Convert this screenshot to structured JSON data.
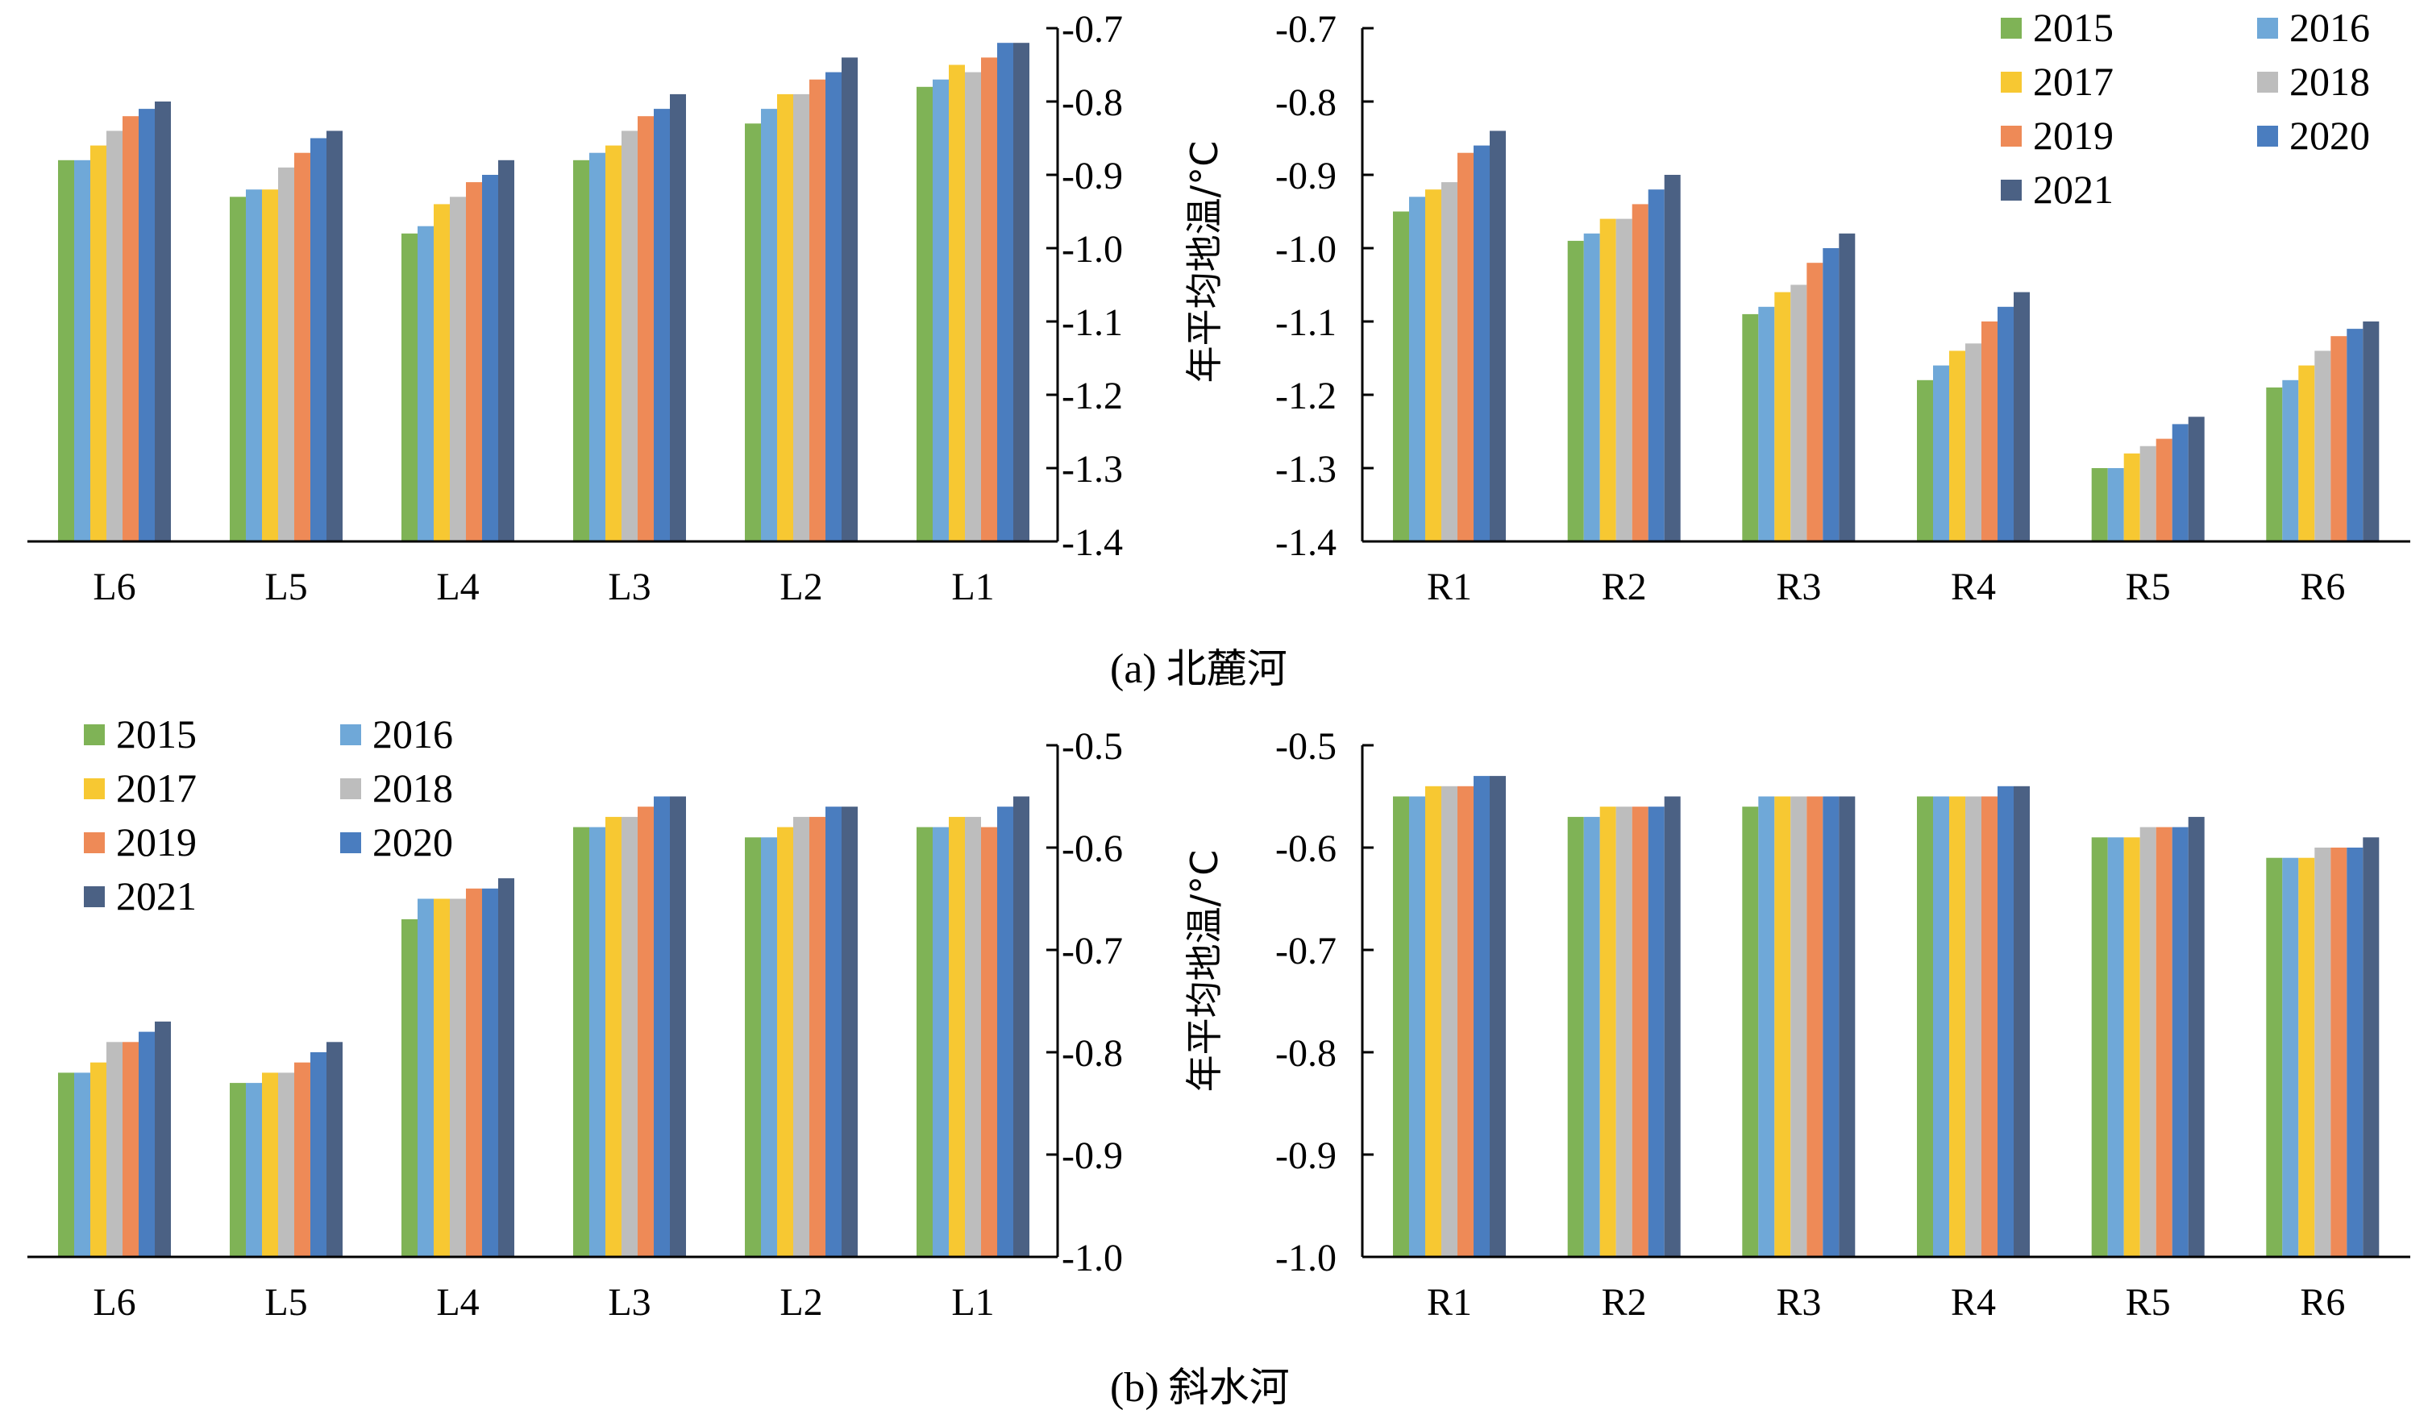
{
  "colors": {
    "2015": "#7fb356",
    "2016": "#6fa8d8",
    "2017": "#f7c832",
    "2018": "#bdbdbd",
    "2019": "#ee8a57",
    "2020": "#4a7dbf",
    "2021": "#4b6184"
  },
  "legend": [
    "2015",
    "2016",
    "2017",
    "2018",
    "2019",
    "2020",
    "2021"
  ],
  "panels": [
    {
      "id": "a",
      "label": "(a)",
      "name": "北麓河"
    },
    {
      "id": "b",
      "label": "(b)",
      "name": "斜水河"
    }
  ],
  "chart_data": [
    {
      "type": "bar",
      "panel": "(a) 北麓河",
      "side": "left",
      "categories": [
        "L6",
        "L5",
        "L4",
        "L3",
        "L2",
        "L1"
      ],
      "ylabel": "年平均地温/°C",
      "ylim": [
        -1.4,
        -0.7
      ],
      "yticks": [
        "-0.7",
        "-0.8",
        "-0.9",
        "-1.0",
        "-1.1",
        "-1.2",
        "-1.3",
        "-1.4"
      ],
      "series": [
        {
          "name": "2015",
          "values": [
            -0.88,
            -0.93,
            -0.98,
            -0.88,
            -0.83,
            -0.78
          ]
        },
        {
          "name": "2016",
          "values": [
            -0.88,
            -0.92,
            -0.97,
            -0.87,
            -0.81,
            -0.77
          ]
        },
        {
          "name": "2017",
          "values": [
            -0.86,
            -0.92,
            -0.94,
            -0.86,
            -0.79,
            -0.75
          ]
        },
        {
          "name": "2018",
          "values": [
            -0.84,
            -0.89,
            -0.93,
            -0.84,
            -0.79,
            -0.76
          ]
        },
        {
          "name": "2019",
          "values": [
            -0.82,
            -0.87,
            -0.91,
            -0.82,
            -0.77,
            -0.74
          ]
        },
        {
          "name": "2020",
          "values": [
            -0.81,
            -0.85,
            -0.9,
            -0.81,
            -0.76,
            -0.72
          ]
        },
        {
          "name": "2021",
          "values": [
            -0.8,
            -0.84,
            -0.88,
            -0.79,
            -0.74,
            -0.72
          ]
        }
      ]
    },
    {
      "type": "bar",
      "panel": "(a) 北麓河",
      "side": "right",
      "categories": [
        "R1",
        "R2",
        "R3",
        "R4",
        "R5",
        "R6"
      ],
      "ylim": [
        -1.4,
        -0.7
      ],
      "yticks": [
        "-0.7",
        "-0.8",
        "-0.9",
        "-1.0",
        "-1.1",
        "-1.2",
        "-1.3",
        "-1.4"
      ],
      "series": [
        {
          "name": "2015",
          "values": [
            -0.95,
            -0.99,
            -1.09,
            -1.18,
            -1.3,
            -1.19
          ]
        },
        {
          "name": "2016",
          "values": [
            -0.93,
            -0.98,
            -1.08,
            -1.16,
            -1.3,
            -1.18
          ]
        },
        {
          "name": "2017",
          "values": [
            -0.92,
            -0.96,
            -1.06,
            -1.14,
            -1.28,
            -1.16
          ]
        },
        {
          "name": "2018",
          "values": [
            -0.91,
            -0.96,
            -1.05,
            -1.13,
            -1.27,
            -1.14
          ]
        },
        {
          "name": "2019",
          "values": [
            -0.87,
            -0.94,
            -1.02,
            -1.1,
            -1.26,
            -1.12
          ]
        },
        {
          "name": "2020",
          "values": [
            -0.86,
            -0.92,
            -1.0,
            -1.08,
            -1.24,
            -1.11
          ]
        },
        {
          "name": "2021",
          "values": [
            -0.84,
            -0.9,
            -0.98,
            -1.06,
            -1.23,
            -1.1
          ]
        }
      ]
    },
    {
      "type": "bar",
      "panel": "(b) 斜水河",
      "side": "left",
      "categories": [
        "L6",
        "L5",
        "L4",
        "L3",
        "L2",
        "L1"
      ],
      "ylabel": "年平均地温/°C",
      "ylim": [
        -1.0,
        -0.5
      ],
      "yticks": [
        "-0.5",
        "-0.6",
        "-0.7",
        "-0.8",
        "-0.9",
        "-1.0"
      ],
      "series": [
        {
          "name": "2015",
          "values": [
            -0.82,
            -0.83,
            -0.67,
            -0.58,
            -0.59,
            -0.58
          ]
        },
        {
          "name": "2016",
          "values": [
            -0.82,
            -0.83,
            -0.65,
            -0.58,
            -0.59,
            -0.58
          ]
        },
        {
          "name": "2017",
          "values": [
            -0.81,
            -0.82,
            -0.65,
            -0.57,
            -0.58,
            -0.57
          ]
        },
        {
          "name": "2018",
          "values": [
            -0.79,
            -0.82,
            -0.65,
            -0.57,
            -0.57,
            -0.57
          ]
        },
        {
          "name": "2019",
          "values": [
            -0.79,
            -0.81,
            -0.64,
            -0.56,
            -0.57,
            -0.58
          ]
        },
        {
          "name": "2020",
          "values": [
            -0.78,
            -0.8,
            -0.64,
            -0.55,
            -0.56,
            -0.56
          ]
        },
        {
          "name": "2021",
          "values": [
            -0.77,
            -0.79,
            -0.63,
            -0.55,
            -0.56,
            -0.55
          ]
        }
      ]
    },
    {
      "type": "bar",
      "panel": "(b) 斜水河",
      "side": "right",
      "categories": [
        "R1",
        "R2",
        "R3",
        "R4",
        "R5",
        "R6"
      ],
      "ylim": [
        -1.0,
        -0.5
      ],
      "yticks": [
        "-0.5",
        "-0.6",
        "-0.7",
        "-0.8",
        "-0.9",
        "-1.0"
      ],
      "series": [
        {
          "name": "2015",
          "values": [
            -0.55,
            -0.57,
            -0.56,
            -0.55,
            -0.59,
            -0.61
          ]
        },
        {
          "name": "2016",
          "values": [
            -0.55,
            -0.57,
            -0.55,
            -0.55,
            -0.59,
            -0.61
          ]
        },
        {
          "name": "2017",
          "values": [
            -0.54,
            -0.56,
            -0.55,
            -0.55,
            -0.59,
            -0.61
          ]
        },
        {
          "name": "2018",
          "values": [
            -0.54,
            -0.56,
            -0.55,
            -0.55,
            -0.58,
            -0.6
          ]
        },
        {
          "name": "2019",
          "values": [
            -0.54,
            -0.56,
            -0.55,
            -0.55,
            -0.58,
            -0.6
          ]
        },
        {
          "name": "2020",
          "values": [
            -0.53,
            -0.56,
            -0.55,
            -0.54,
            -0.58,
            -0.6
          ]
        },
        {
          "name": "2021",
          "values": [
            -0.53,
            -0.55,
            -0.55,
            -0.54,
            -0.57,
            -0.59
          ]
        }
      ]
    }
  ]
}
